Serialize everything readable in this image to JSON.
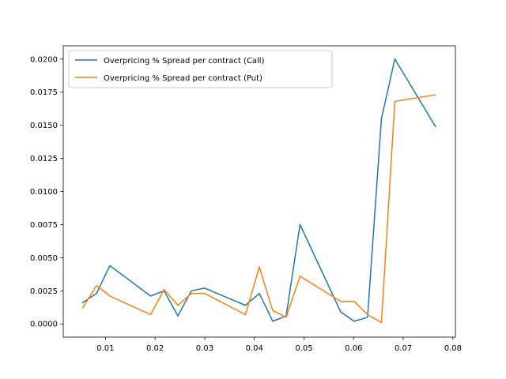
{
  "chart_data": {
    "type": "line",
    "title": "",
    "xlabel": "",
    "ylabel": "",
    "xlim": [
      0.0015,
      0.0805
    ],
    "ylim": [
      -0.001,
      0.021
    ],
    "grid": false,
    "legend_position": "upper-left",
    "x_ticks": [
      0.01,
      0.02,
      0.03,
      0.04,
      0.05,
      0.06,
      0.07,
      0.08
    ],
    "x_tick_labels": [
      "0.01",
      "0.02",
      "0.03",
      "0.04",
      "0.05",
      "0.06",
      "0.07",
      "0.08"
    ],
    "y_ticks": [
      0.0,
      0.0025,
      0.005,
      0.0075,
      0.01,
      0.0125,
      0.015,
      0.0175,
      0.02
    ],
    "y_tick_labels": [
      "0.0000",
      "0.0025",
      "0.0050",
      "0.0075",
      "0.0100",
      "0.0125",
      "0.0150",
      "0.0175",
      "0.0200"
    ],
    "series": [
      {
        "name": "Overpricing % Spread per contract (Call)",
        "color": "#1f77b4",
        "x": [
          0.0054,
          0.0082,
          0.0109,
          0.0191,
          0.0218,
          0.0246,
          0.0273,
          0.03,
          0.0382,
          0.041,
          0.0437,
          0.0464,
          0.0492,
          0.0574,
          0.0601,
          0.0628,
          0.0656,
          0.0683,
          0.0765
        ],
        "y": [
          0.0016,
          0.0023,
          0.0044,
          0.0021,
          0.0025,
          0.0006,
          0.0025,
          0.0027,
          0.0014,
          0.0023,
          0.0002,
          0.0006,
          0.0075,
          0.0009,
          0.0002,
          0.0005,
          0.0155,
          0.02,
          0.0149
        ]
      },
      {
        "name": "Overpricing % Spread per contract (Put)",
        "color": "#ff7f0e",
        "x": [
          0.0054,
          0.0082,
          0.0109,
          0.0191,
          0.0218,
          0.0246,
          0.0273,
          0.03,
          0.0382,
          0.041,
          0.0437,
          0.0464,
          0.0492,
          0.0574,
          0.0601,
          0.0628,
          0.0656,
          0.0683,
          0.0765
        ],
        "y": [
          0.0012,
          0.0029,
          0.0021,
          0.0007,
          0.0026,
          0.0014,
          0.0023,
          0.0023,
          0.0007,
          0.0043,
          0.001,
          0.0005,
          0.0036,
          0.0017,
          0.0017,
          0.0007,
          0.0001,
          0.0168,
          0.0173
        ]
      }
    ]
  }
}
